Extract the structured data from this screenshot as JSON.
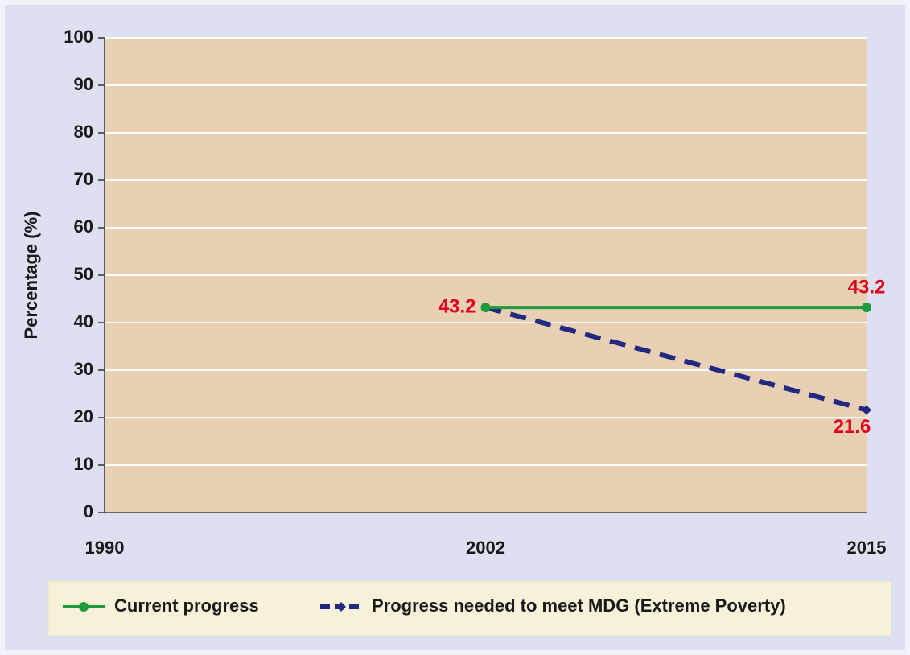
{
  "chart_data": {
    "type": "line",
    "y_label": "Percentage (%)",
    "categories": [
      "1990",
      "2002",
      "2015"
    ],
    "series": [
      {
        "name": "Current progress",
        "color": "#1f9a3c",
        "values": [
          null,
          43.2,
          43.2
        ]
      },
      {
        "name": "Progress needed to meet MDG (Extreme Poverty)",
        "color": "#1f2a80",
        "values": [
          null,
          43.2,
          21.6
        ]
      }
    ],
    "ylim": [
      0,
      100
    ],
    "yticks": [
      0,
      10,
      20,
      30,
      40,
      50,
      60,
      70,
      80,
      90,
      100
    ],
    "grid": true,
    "label_color": "#e0001b",
    "legend": "bottom"
  }
}
